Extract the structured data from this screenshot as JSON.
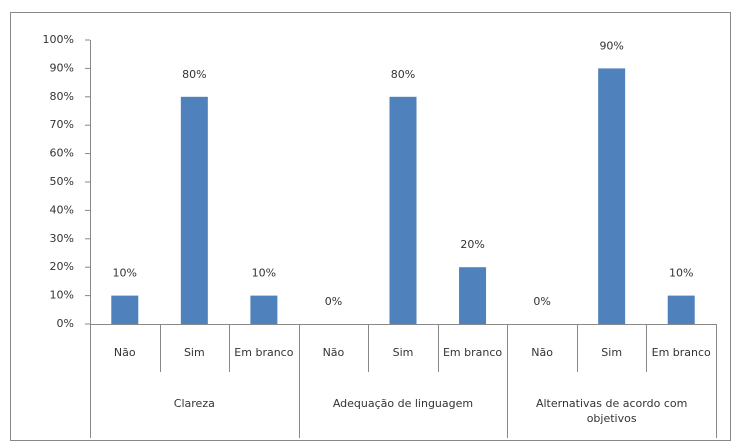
{
  "chart_data": {
    "type": "bar",
    "categories": [
      "Não",
      "Sim",
      "Em branco",
      "Não",
      "Sim",
      "Em branco",
      "Não",
      "Sim",
      "Em branco"
    ],
    "groups": [
      "Clareza",
      "Adequação de linguagem",
      "Alternativas de acordo com objetivos"
    ],
    "values": [
      10,
      80,
      10,
      0,
      80,
      20,
      0,
      90,
      10
    ],
    "value_labels": [
      "10%",
      "80%",
      "10%",
      "0%",
      "80%",
      "20%",
      "0%",
      "90%",
      "10%"
    ],
    "color": "#4f81bd",
    "ylim": [
      0,
      100
    ],
    "yticks": [
      {
        "value": 0,
        "label": "0%"
      },
      {
        "value": 10,
        "label": "10%"
      },
      {
        "value": 20,
        "label": "20%"
      },
      {
        "value": 30,
        "label": "30%"
      },
      {
        "value": 40,
        "label": "40%"
      },
      {
        "value": 50,
        "label": "50%"
      },
      {
        "value": 60,
        "label": "60%"
      },
      {
        "value": 70,
        "label": "70%"
      },
      {
        "value": 80,
        "label": "80%"
      },
      {
        "value": 90,
        "label": "90%"
      },
      {
        "value": 100,
        "label": "100%"
      }
    ],
    "grid": false
  }
}
